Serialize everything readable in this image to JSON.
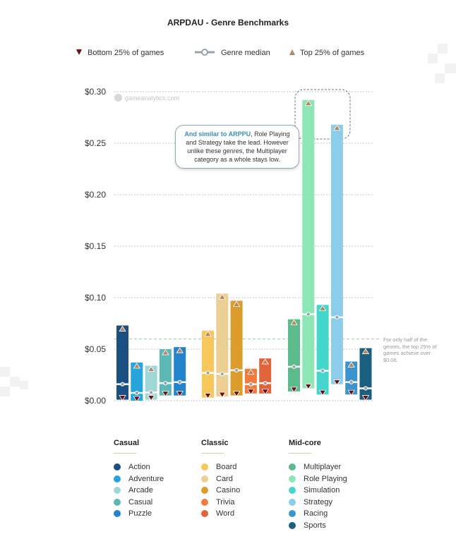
{
  "chart_data": {
    "type": "bar",
    "subtype": "range-bar",
    "title": "ARPDAU - Genre Benchmarks",
    "legend": {
      "placement": "top",
      "entries": [
        "Bottom 25% of games",
        "Genre median",
        "Top 25% of games"
      ]
    },
    "yaxis": {
      "ticks": [
        "$0.00",
        "$0.05",
        "$0.10",
        "$0.15",
        "$0.20",
        "$0.25",
        "$0.30"
      ],
      "tick_values": [
        0,
        0.05,
        0.1,
        0.15,
        0.2,
        0.25,
        0.3
      ],
      "ylim": [
        0,
        0.3
      ],
      "grid": true
    },
    "groups": [
      {
        "name": "Casual",
        "genres": [
          {
            "name": "Action",
            "color": "#1b4f82",
            "p25": 0.001,
            "median": 0.016,
            "p75": 0.073
          },
          {
            "name": "Adventure",
            "color": "#25a5dc",
            "p25": 0.0,
            "median": 0.0075,
            "p75": 0.037
          },
          {
            "name": "Arcade",
            "color": "#9fd7d7",
            "p25": 0.001,
            "median": 0.008,
            "p75": 0.034
          },
          {
            "name": "Casual",
            "color": "#5cb8b5",
            "p25": 0.005,
            "median": 0.017,
            "p75": 0.05
          },
          {
            "name": "Puzzle",
            "color": "#2384cc",
            "p25": 0.005,
            "median": 0.018,
            "p75": 0.052
          }
        ]
      },
      {
        "name": "Classic",
        "genres": [
          {
            "name": "Board",
            "color": "#f7c75a",
            "p25": 0.003,
            "median": 0.027,
            "p75": 0.068
          },
          {
            "name": "Card",
            "color": "#ebcf93",
            "p25": 0.004,
            "median": 0.026,
            "p75": 0.104
          },
          {
            "name": "Casino",
            "color": "#dc9c2c",
            "p25": 0.005,
            "median": 0.0295,
            "p75": 0.097
          },
          {
            "name": "Trivia",
            "color": "#f27a3b",
            "p25": 0.007,
            "median": 0.016,
            "p75": 0.031
          },
          {
            "name": "Word",
            "color": "#e0633a",
            "p25": 0.007,
            "median": 0.017,
            "p75": 0.041
          }
        ]
      },
      {
        "name": "Mid-core",
        "genres": [
          {
            "name": "Multiplayer",
            "color": "#5bbb8a",
            "p25": 0.009,
            "median": 0.033,
            "p75": 0.079
          },
          {
            "name": "Role Playing",
            "color": "#8de6b5",
            "p25": 0.012,
            "median": 0.084,
            "p75": 0.292
          },
          {
            "name": "Simulation",
            "color": "#44d6cc",
            "p25": 0.006,
            "median": 0.029,
            "p75": 0.093
          },
          {
            "name": "Strategy",
            "color": "#8dcdec",
            "p25": 0.016,
            "median": 0.081,
            "p75": 0.268
          },
          {
            "name": "Racing",
            "color": "#3c94cc",
            "p25": 0.006,
            "median": 0.018,
            "p75": 0.038
          },
          {
            "name": "Sports",
            "color": "#1a5f80",
            "p25": 0.001,
            "median": 0.012,
            "p75": 0.051
          }
        ]
      }
    ],
    "reference_line": {
      "value": 0.06,
      "note": "For only half of the genres, the top 25% of games achieve over $0.06."
    },
    "annotation": {
      "highlight": "And similar to ARPPU",
      "text": ", Role Playing and Strategy take the lead. However unlike these genres, the Multiplayer category as a whole stays low."
    },
    "watermark": "gameanalytics.com"
  },
  "colors": {
    "bottom_marker": "#6b0f14",
    "top_marker": "#b9845a",
    "median_marker": "#9aa3a8",
    "reference_line": "#8fcfb0"
  }
}
